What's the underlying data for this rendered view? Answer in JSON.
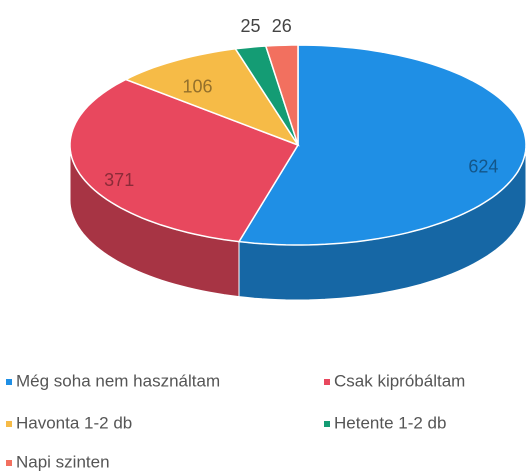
{
  "chart_data": {
    "type": "pie",
    "categories": [
      "Még soha nem használtam",
      "Csak kipróbáltam",
      "Havonta 1-2 db",
      "Hetente 1-2 db",
      "Napi szinten"
    ],
    "values": [
      624,
      371,
      106,
      25,
      26
    ],
    "colors": [
      "#1f8fe5",
      "#e8485e",
      "#f6bb47",
      "#149c74",
      "#f2705f"
    ],
    "legend": "bottom"
  }
}
